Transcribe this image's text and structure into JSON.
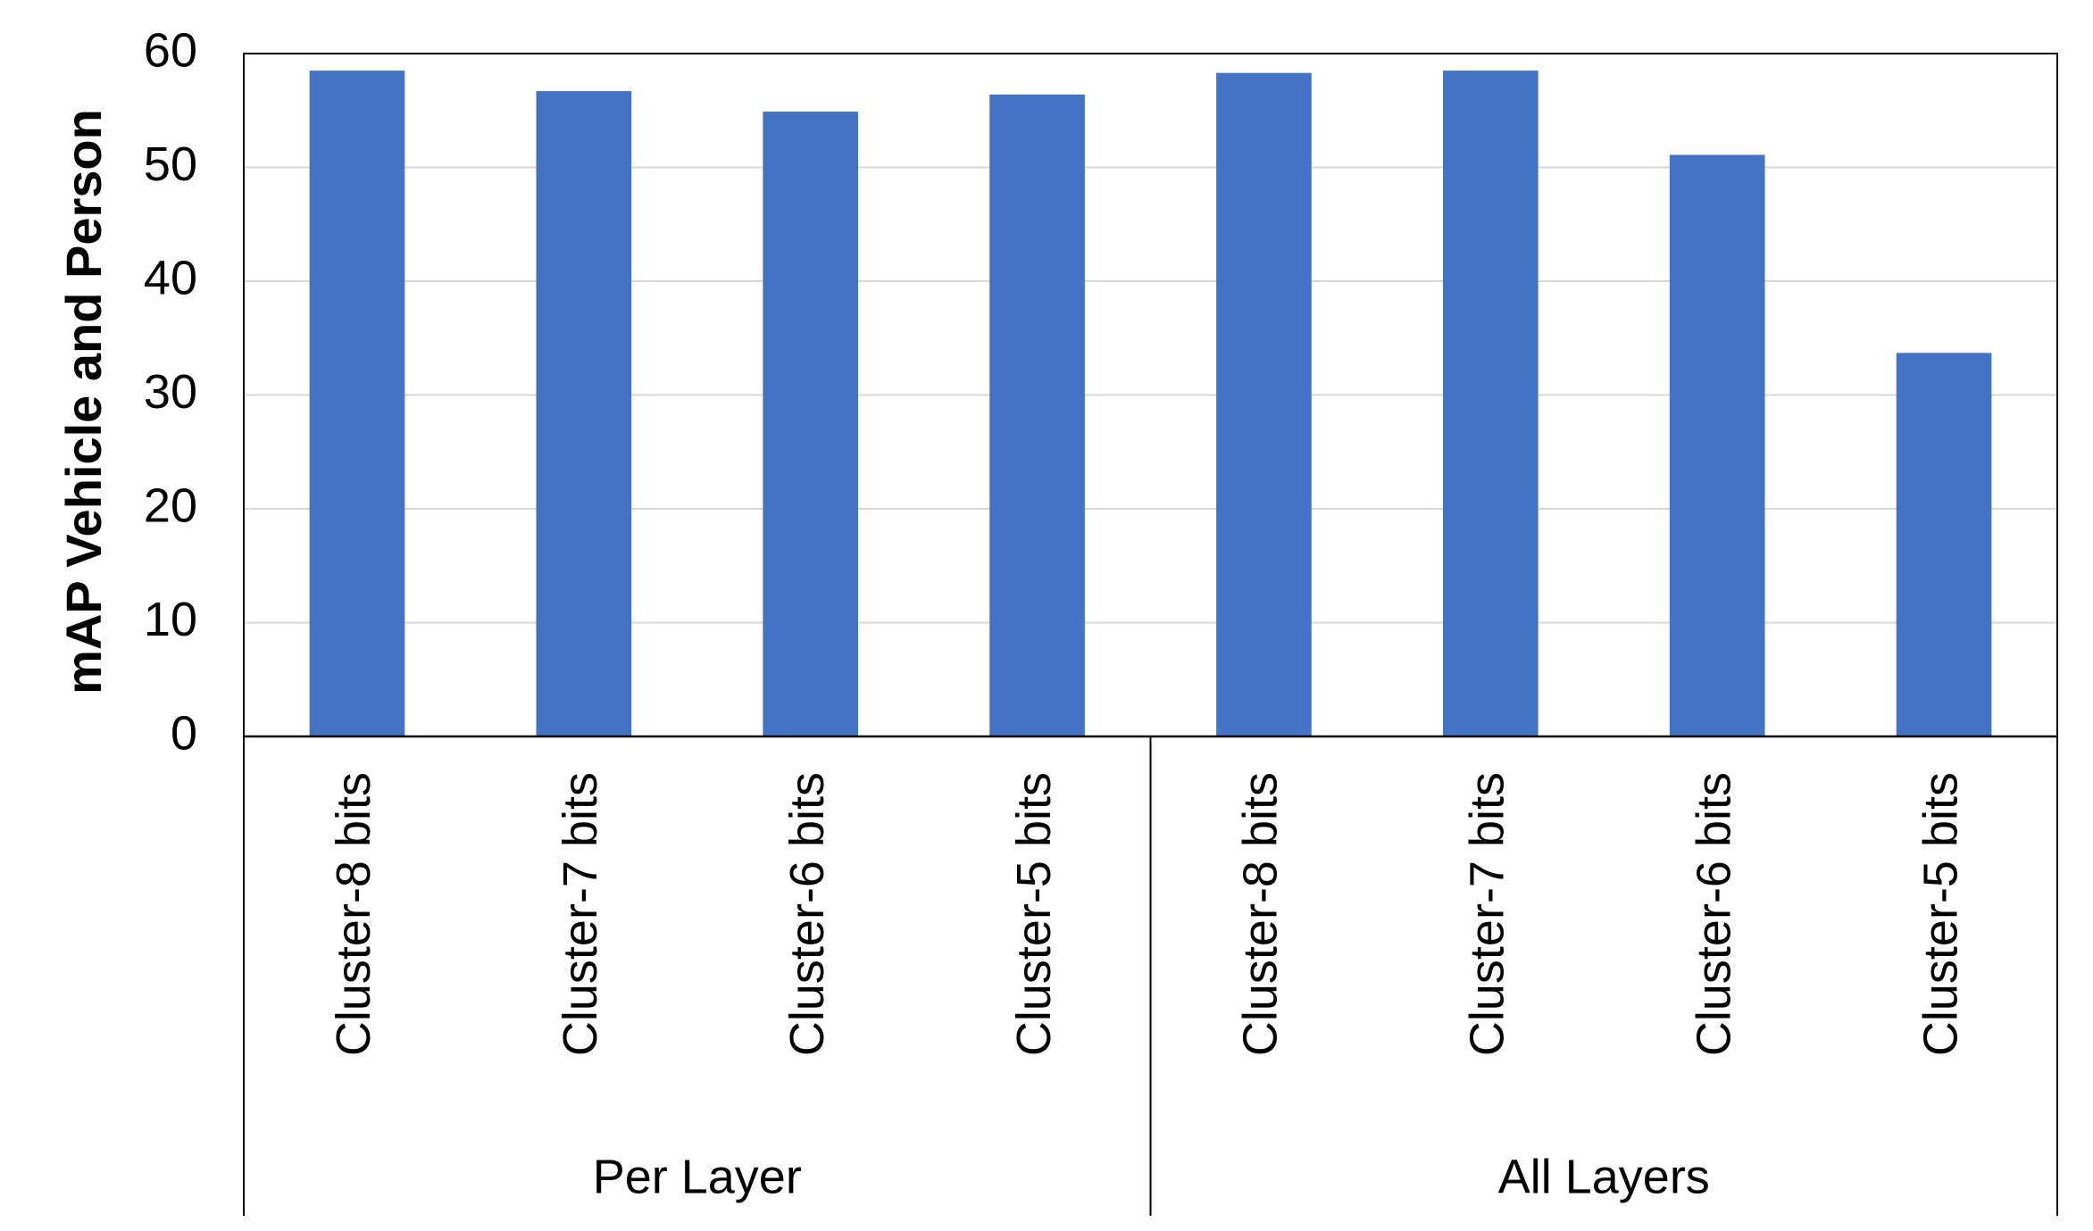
{
  "chart_data": {
    "type": "bar",
    "y_label": "mAP Vehicle and Person",
    "categories": [
      "Cluster-8 bits",
      "Cluster-7 bits",
      "Cluster-6 bits",
      "Cluster-5 bits",
      "Cluster-8 bits",
      "Cluster-7 bits",
      "Cluster-6 bits",
      "Cluster-5 bits"
    ],
    "groups": [
      "Per Layer",
      "All Layers"
    ],
    "values": [
      58.5,
      56.7,
      54.9,
      56.4,
      58.3,
      58.5,
      51.1,
      33.7
    ],
    "color": "#4472c4",
    "ylim": [
      0,
      60
    ],
    "yticks": [
      0,
      10,
      20,
      30,
      40,
      50,
      60
    ],
    "grid": true
  }
}
